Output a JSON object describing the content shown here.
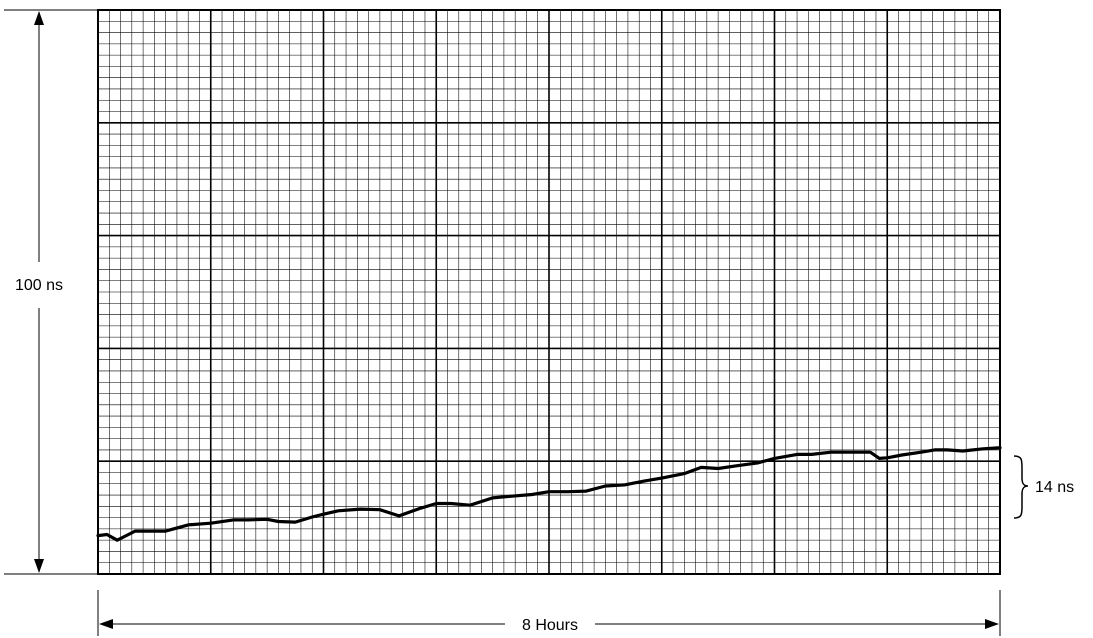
{
  "chart_data": {
    "type": "line",
    "title": "",
    "xlabel": "8 Hours",
    "ylabel": "100 ns",
    "annotation": "14 ns",
    "xlim": [
      0,
      8
    ],
    "ylim": [
      0,
      100
    ],
    "grid": true,
    "colors": {
      "grid": "#000000",
      "line": "#000000",
      "background": "#ffffff"
    },
    "series": [
      {
        "x": [
          0,
          0.08,
          0.17,
          0.33,
          0.6,
          0.8,
          1.0,
          1.2,
          1.33,
          1.5,
          1.6,
          1.75,
          1.9,
          2.0,
          2.13,
          2.33,
          2.5,
          2.67,
          2.85,
          3.0,
          3.13,
          3.3,
          3.5,
          3.67,
          3.85,
          4.0,
          4.17,
          4.33,
          4.5,
          4.67,
          4.85,
          5.0,
          5.2,
          5.35,
          5.5,
          5.67,
          5.85,
          6.0,
          6.2,
          6.33,
          6.5,
          6.67,
          6.85,
          6.93,
          7.0,
          7.13,
          7.3,
          7.42,
          7.53,
          7.67,
          7.85,
          8.0
        ],
        "y": [
          6.8,
          7.0,
          6.0,
          7.6,
          7.6,
          8.7,
          9.0,
          9.6,
          9.6,
          9.7,
          9.3,
          9.2,
          10.1,
          10.6,
          11.2,
          11.5,
          11.4,
          10.3,
          11.6,
          12.5,
          12.5,
          12.2,
          13.5,
          13.8,
          14.1,
          14.6,
          14.6,
          14.7,
          15.6,
          15.8,
          16.5,
          17.0,
          17.8,
          18.9,
          18.7,
          19.2,
          19.7,
          20.5,
          21.2,
          21.2,
          21.6,
          21.6,
          21.6,
          20.5,
          20.6,
          21.1,
          21.6,
          22.0,
          22.0,
          21.8,
          22.2,
          22.4
        ]
      }
    ]
  }
}
